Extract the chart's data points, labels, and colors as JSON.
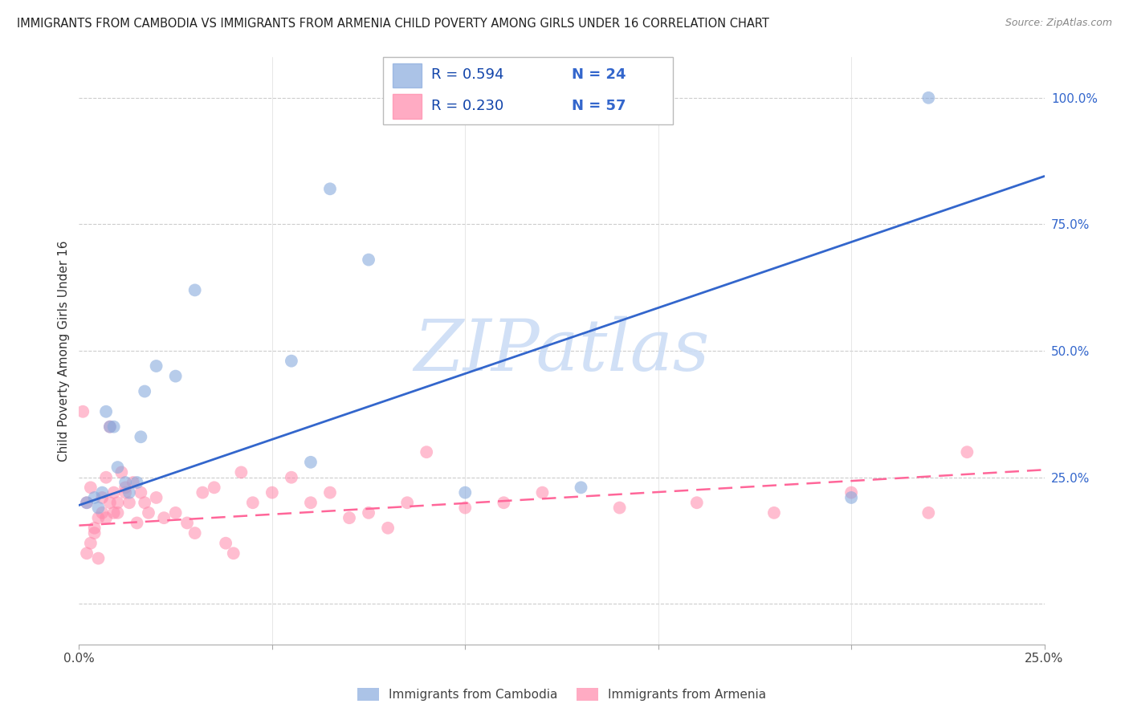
{
  "title": "IMMIGRANTS FROM CAMBODIA VS IMMIGRANTS FROM ARMENIA CHILD POVERTY AMONG GIRLS UNDER 16 CORRELATION CHART",
  "source": "Source: ZipAtlas.com",
  "ylabel": "Child Poverty Among Girls Under 16",
  "xmin": 0.0,
  "xmax": 0.25,
  "ymin": -0.08,
  "ymax": 1.08,
  "yticks": [
    0.0,
    0.25,
    0.5,
    0.75,
    1.0
  ],
  "ytick_labels": [
    "",
    "25.0%",
    "50.0%",
    "75.0%",
    "100.0%"
  ],
  "legend_r1": "R = 0.594",
  "legend_n1": "N = 24",
  "legend_r2": "R = 0.230",
  "legend_n2": "N = 57",
  "color_cambodia": "#88AADD",
  "color_armenia": "#FF88AA",
  "color_blue_text": "#3366CC",
  "color_pink_text": "#FF6699",
  "color_dark_blue": "#1144AA",
  "watermark_text": "ZIPatlas",
  "cambodia_x": [
    0.002,
    0.004,
    0.005,
    0.006,
    0.007,
    0.008,
    0.009,
    0.01,
    0.012,
    0.013,
    0.015,
    0.016,
    0.017,
    0.02,
    0.025,
    0.03,
    0.055,
    0.06,
    0.065,
    0.075,
    0.1,
    0.13,
    0.2,
    0.22
  ],
  "cambodia_y": [
    0.2,
    0.21,
    0.19,
    0.22,
    0.38,
    0.35,
    0.35,
    0.27,
    0.24,
    0.22,
    0.24,
    0.33,
    0.42,
    0.47,
    0.45,
    0.62,
    0.48,
    0.28,
    0.82,
    0.68,
    0.22,
    0.23,
    0.21,
    1.0
  ],
  "armenia_x": [
    0.001,
    0.002,
    0.002,
    0.003,
    0.003,
    0.004,
    0.004,
    0.005,
    0.005,
    0.006,
    0.006,
    0.007,
    0.007,
    0.008,
    0.008,
    0.009,
    0.009,
    0.01,
    0.01,
    0.011,
    0.012,
    0.012,
    0.013,
    0.014,
    0.015,
    0.016,
    0.017,
    0.018,
    0.02,
    0.022,
    0.025,
    0.028,
    0.03,
    0.032,
    0.035,
    0.038,
    0.04,
    0.042,
    0.045,
    0.05,
    0.055,
    0.06,
    0.065,
    0.07,
    0.075,
    0.08,
    0.085,
    0.09,
    0.1,
    0.11,
    0.12,
    0.14,
    0.16,
    0.18,
    0.2,
    0.22,
    0.23
  ],
  "armenia_y": [
    0.38,
    0.2,
    0.1,
    0.23,
    0.12,
    0.14,
    0.15,
    0.17,
    0.09,
    0.21,
    0.18,
    0.17,
    0.25,
    0.35,
    0.2,
    0.22,
    0.18,
    0.2,
    0.18,
    0.26,
    0.23,
    0.22,
    0.2,
    0.24,
    0.16,
    0.22,
    0.2,
    0.18,
    0.21,
    0.17,
    0.18,
    0.16,
    0.14,
    0.22,
    0.23,
    0.12,
    0.1,
    0.26,
    0.2,
    0.22,
    0.25,
    0.2,
    0.22,
    0.17,
    0.18,
    0.15,
    0.2,
    0.3,
    0.19,
    0.2,
    0.22,
    0.19,
    0.2,
    0.18,
    0.22,
    0.18,
    0.3
  ],
  "blue_line_x": [
    0.0,
    0.25
  ],
  "blue_line_y": [
    0.195,
    0.845
  ],
  "pink_line_x": [
    0.0,
    0.25
  ],
  "pink_line_y": [
    0.155,
    0.265
  ],
  "bg_color": "#FFFFFF",
  "grid_color": "#CCCCCC"
}
